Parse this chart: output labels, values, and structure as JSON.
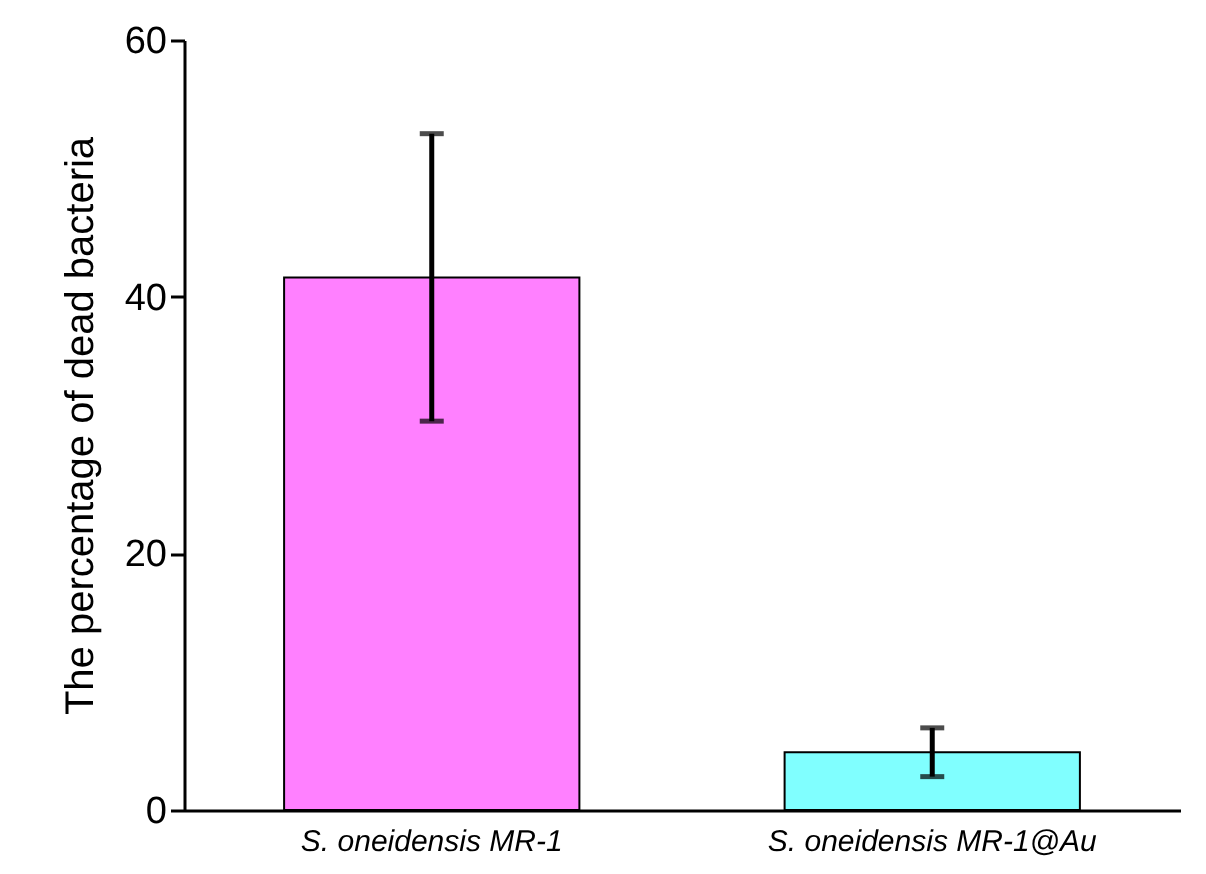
{
  "chart_data": {
    "type": "bar",
    "ylabel": "The percentage of dead bacteria",
    "categories": [
      "S. oneidensis MR-1",
      "S. oneidensis MR-1@Au"
    ],
    "values": [
      41.5,
      4.5
    ],
    "colors": [
      "#ff80ff",
      "#80ffff"
    ],
    "errors": [
      11.2,
      1.9
    ],
    "ylim": [
      0,
      60
    ],
    "yticks": [
      0,
      20,
      40,
      60
    ],
    "grid": false
  }
}
